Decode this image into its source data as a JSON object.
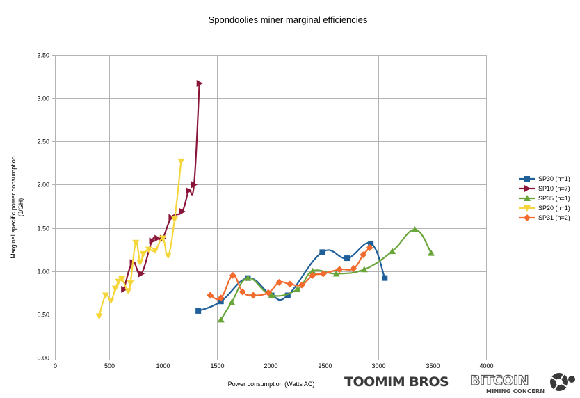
{
  "chart_data": {
    "type": "line",
    "title": "Spondoolies miner marginal efficiencies",
    "xlabel": "Power consumption (Watts AC)",
    "ylabel": [
      "Marginal specific power consumption",
      "(J/GH)"
    ],
    "xlim": [
      0,
      4000
    ],
    "ylim": [
      0,
      3.5
    ],
    "xticks": [
      0,
      500,
      1000,
      1500,
      2000,
      2500,
      3000,
      3500,
      4000
    ],
    "yticks": [
      0,
      0.5,
      1,
      1.5,
      2,
      2.5,
      3,
      3.5
    ],
    "ytick_labels": [
      "0.00",
      "0.50",
      "1.00",
      "1.50",
      "2.00",
      "2.50",
      "3.00",
      "3.50"
    ],
    "grid": "vertical and horizontal major gridlines",
    "legend_position": "right",
    "series": [
      {
        "name": "SP30 (n=1)",
        "color": "#1f5f9a",
        "marker": "square",
        "points": [
          [
            1330,
            0.54
          ],
          [
            1540,
            0.65
          ],
          [
            1790,
            0.92
          ],
          [
            2010,
            0.72
          ],
          [
            2160,
            0.72
          ],
          [
            2480,
            1.22
          ],
          [
            2710,
            1.15
          ],
          [
            2930,
            1.32
          ],
          [
            3060,
            0.92
          ]
        ]
      },
      {
        "name": "SP10 (n=7)",
        "color": "#8b1538",
        "marker": "triangle-right",
        "points": [
          [
            640,
            0.79
          ],
          [
            720,
            1.1
          ],
          [
            800,
            0.97
          ],
          [
            900,
            1.35
          ],
          [
            950,
            1.38
          ],
          [
            1000,
            1.38
          ],
          [
            1080,
            1.62
          ],
          [
            1180,
            1.69
          ],
          [
            1240,
            1.93
          ],
          [
            1290,
            2.0
          ],
          [
            1340,
            3.17
          ]
        ]
      },
      {
        "name": "SP35 (n=1)",
        "color": "#6aa53a",
        "marker": "triangle-up",
        "points": [
          [
            1540,
            0.44
          ],
          [
            1640,
            0.64
          ],
          [
            1790,
            0.92
          ],
          [
            2010,
            0.72
          ],
          [
            2250,
            0.79
          ],
          [
            2390,
            1.0
          ],
          [
            2610,
            0.97
          ],
          [
            2870,
            1.02
          ],
          [
            3130,
            1.23
          ],
          [
            3340,
            1.48
          ],
          [
            3490,
            1.21
          ]
        ]
      },
      {
        "name": "SP20 (n=1)",
        "color": "#f5d63a",
        "marker": "triangle-down",
        "points": [
          [
            410,
            0.48
          ],
          [
            470,
            0.72
          ],
          [
            520,
            0.66
          ],
          [
            560,
            0.8
          ],
          [
            590,
            0.88
          ],
          [
            620,
            0.91
          ],
          [
            680,
            0.77
          ],
          [
            700,
            0.86
          ],
          [
            750,
            1.33
          ],
          [
            790,
            1.1
          ],
          [
            820,
            1.2
          ],
          [
            870,
            1.25
          ],
          [
            930,
            1.24
          ],
          [
            1000,
            1.38
          ],
          [
            1050,
            1.18
          ],
          [
            1110,
            1.6
          ],
          [
            1170,
            2.27
          ]
        ]
      },
      {
        "name": "SP31 (n=2)",
        "color": "#f26a2e",
        "marker": "diamond",
        "points": [
          [
            1440,
            0.72
          ],
          [
            1540,
            0.69
          ],
          [
            1650,
            0.95
          ],
          [
            1740,
            0.76
          ],
          [
            1840,
            0.72
          ],
          [
            1980,
            0.75
          ],
          [
            2080,
            0.87
          ],
          [
            2180,
            0.85
          ],
          [
            2290,
            0.84
          ],
          [
            2390,
            0.95
          ],
          [
            2490,
            0.97
          ],
          [
            2640,
            1.02
          ],
          [
            2770,
            1.03
          ],
          [
            2860,
            1.19
          ],
          [
            2920,
            1.27
          ]
        ]
      }
    ]
  },
  "branding": {
    "logo1": "TOOMIM BROS",
    "logo2_main": "BITCOIN",
    "logo2_sub": "MINING CONCERN"
  }
}
